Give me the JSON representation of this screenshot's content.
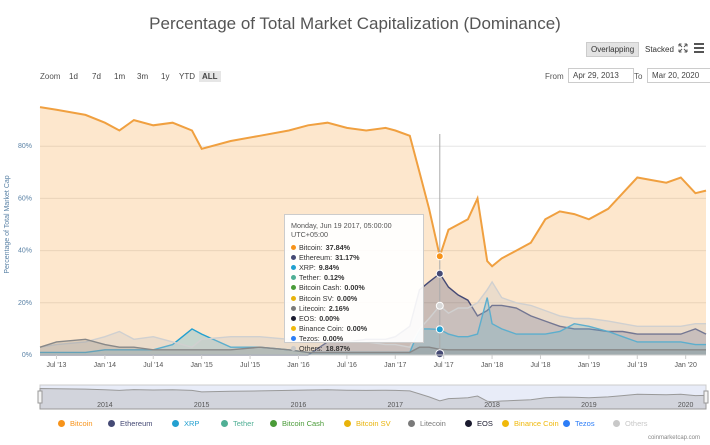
{
  "title": "Percentage of Total Market Capitalization (Dominance)",
  "toolbar": {
    "overlapping": "Overlapping",
    "stacked": "Stacked"
  },
  "zoom": {
    "label": "Zoom",
    "buttons": [
      "1d",
      "7d",
      "1m",
      "3m",
      "1y",
      "YTD",
      "ALL"
    ],
    "active": "ALL"
  },
  "range": {
    "from_label": "From",
    "from_value": "Apr 29, 2013",
    "to_label": "To",
    "to_value": "Mar 20, 2020"
  },
  "tooltip": {
    "date": "Monday, Jun 19 2017, 05:00:00 UTC+05:00",
    "rows": [
      {
        "name": "Bitcoin",
        "value": "37.84%",
        "color": "#f7931a"
      },
      {
        "name": "Ethereum",
        "value": "31.17%",
        "color": "#454a75"
      },
      {
        "name": "XRP",
        "value": "9.84%",
        "color": "#23a0d0"
      },
      {
        "name": "Tether",
        "value": "0.12%",
        "color": "#50af95"
      },
      {
        "name": "Bitcoin Cash",
        "value": "0.00%",
        "color": "#4a9b38"
      },
      {
        "name": "Bitcoin SV",
        "value": "0.00%",
        "color": "#e8b30a"
      },
      {
        "name": "Litecoin",
        "value": "2.16%",
        "color": "#7a7a7a"
      },
      {
        "name": "EOS",
        "value": "0.00%",
        "color": "#1a1a2e"
      },
      {
        "name": "Binance Coin",
        "value": "0.00%",
        "color": "#f0b90b"
      },
      {
        "name": "Tezos",
        "value": "0.00%",
        "color": "#2c7df7"
      },
      {
        "name": "Others",
        "value": "18.87%",
        "color": "#c8c8c8"
      }
    ]
  },
  "legend": [
    {
      "name": "Bitcoin",
      "color": "#f7931a"
    },
    {
      "name": "Ethereum",
      "color": "#454a75"
    },
    {
      "name": "XRP",
      "color": "#23a0d0"
    },
    {
      "name": "Tether",
      "color": "#50af95"
    },
    {
      "name": "Bitcoin Cash",
      "color": "#4a9b38"
    },
    {
      "name": "Bitcoin SV",
      "color": "#e8b30a"
    },
    {
      "name": "Litecoin",
      "color": "#7a7a7a"
    },
    {
      "name": "EOS",
      "color": "#1a1a2e"
    },
    {
      "name": "Binance Coin",
      "color": "#f0b90b"
    },
    {
      "name": "Tezos",
      "color": "#2c7df7"
    },
    {
      "name": "Others",
      "color": "#c8c8c8"
    }
  ],
  "credit": "coinmarketcap.com",
  "chart_data": {
    "type": "area",
    "ylabel": "Percentage of Total Market Cap",
    "ylim": [
      0,
      100
    ],
    "yticks": [
      "0%",
      "20%",
      "40%",
      "60%",
      "80%"
    ],
    "xticks": [
      "Jul '13",
      "Jan '14",
      "Jul '14",
      "Jan '15",
      "Jul '15",
      "Jan '16",
      "Jul '16",
      "Jan '17",
      "Jul '17",
      "Jan '18",
      "Jul '18",
      "Jan '19",
      "Jul '19",
      "Jan '20"
    ],
    "navigator_ticks": [
      "2014",
      "2015",
      "2016",
      "2017",
      "2018",
      "2019",
      "2020"
    ],
    "x": [
      2013.33,
      2013.5,
      2013.8,
      2014.0,
      2014.15,
      2014.3,
      2014.5,
      2014.7,
      2014.9,
      2015.0,
      2015.3,
      2015.6,
      2015.9,
      2016.1,
      2016.3,
      2016.5,
      2016.7,
      2016.9,
      2017.0,
      2017.15,
      2017.25,
      2017.35,
      2017.46,
      2017.55,
      2017.65,
      2017.75,
      2017.85,
      2017.95,
      2018.0,
      2018.1,
      2018.25,
      2018.4,
      2018.55,
      2018.7,
      2018.85,
      2019.0,
      2019.2,
      2019.35,
      2019.5,
      2019.65,
      2019.8,
      2019.95,
      2020.1,
      2020.21
    ],
    "series": [
      {
        "name": "Bitcoin",
        "values": [
          95,
          94,
          92,
          89,
          86,
          90,
          88,
          89,
          86,
          79,
          82,
          84,
          86,
          88,
          89,
          87,
          86,
          87,
          86,
          84,
          70,
          56,
          37.8,
          48,
          50,
          52,
          60,
          36,
          34,
          37,
          40,
          43,
          52,
          55,
          54,
          52,
          56,
          62,
          68,
          67,
          66,
          68,
          62,
          63
        ]
      },
      {
        "name": "Ethereum",
        "values": [
          0,
          0,
          0,
          0,
          0,
          0,
          0,
          0,
          0,
          0,
          0,
          0,
          0,
          0,
          5,
          5,
          6,
          6,
          7,
          11,
          25,
          28,
          31.2,
          26,
          23,
          21,
          15,
          17,
          19,
          19,
          18,
          15,
          13,
          11,
          10,
          10,
          9,
          9,
          8,
          8,
          8,
          8,
          10,
          8
        ]
      },
      {
        "name": "XRP",
        "values": [
          1,
          1,
          1,
          2,
          2,
          2,
          2,
          4,
          10,
          8,
          3,
          3,
          2,
          1,
          1,
          1,
          1,
          1,
          1,
          1,
          10,
          10,
          9.8,
          8,
          7,
          7,
          8,
          22,
          12,
          10,
          8,
          8,
          8,
          9,
          12,
          11,
          9,
          7,
          5,
          5,
          5,
          5,
          4,
          4
        ]
      },
      {
        "name": "Others",
        "values": [
          3,
          4,
          5,
          7,
          9,
          6,
          7,
          5,
          3,
          6,
          7,
          7,
          6,
          7,
          5,
          5,
          5,
          4,
          4,
          3,
          10,
          14,
          18.9,
          16,
          18,
          18,
          20,
          25,
          28,
          22,
          20,
          19,
          17,
          15,
          14,
          14,
          13,
          12,
          11,
          11,
          11,
          11,
          12,
          12
        ]
      },
      {
        "name": "Litecoin",
        "values": [
          3,
          5,
          6,
          4,
          3,
          3,
          2,
          2,
          2,
          2,
          2,
          3,
          2,
          1,
          1,
          1,
          1,
          1,
          1,
          1,
          3,
          3,
          2.2,
          2,
          2,
          2,
          2,
          2,
          2,
          2,
          2,
          2,
          2,
          2,
          2,
          2,
          2,
          2,
          2,
          2,
          2,
          2,
          2,
          2
        ]
      }
    ]
  }
}
